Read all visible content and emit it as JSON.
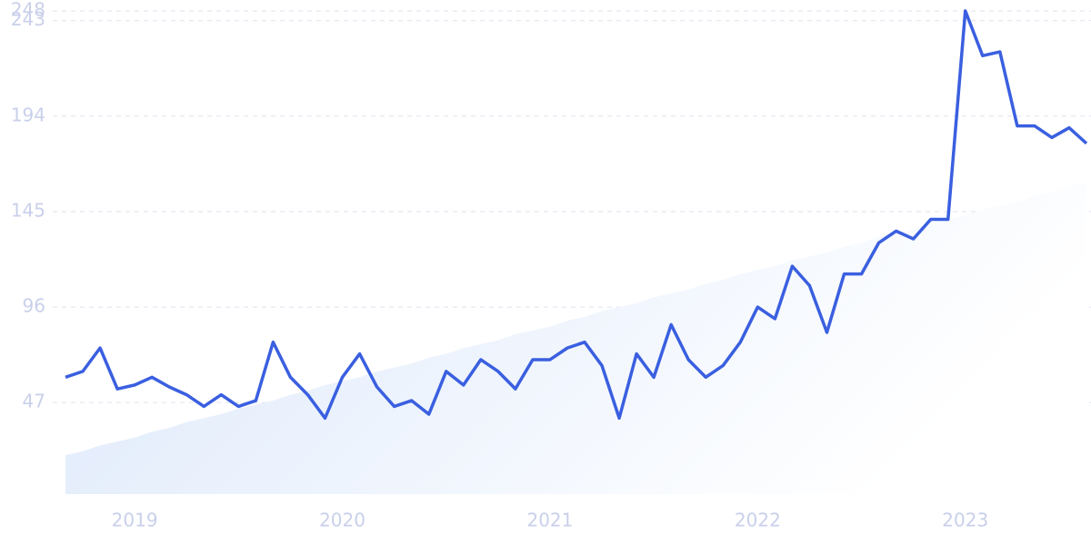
{
  "chart_data": {
    "type": "line",
    "categories": [
      null,
      null,
      null,
      null,
      "2019",
      null,
      null,
      null,
      null,
      null,
      null,
      null,
      null,
      null,
      null,
      null,
      "2020",
      null,
      null,
      null,
      null,
      null,
      null,
      null,
      null,
      null,
      null,
      null,
      "2021",
      null,
      null,
      null,
      null,
      null,
      null,
      null,
      null,
      null,
      null,
      null,
      "2022",
      null,
      null,
      null,
      null,
      null,
      null,
      null,
      null,
      null,
      null,
      null,
      "2023",
      null,
      null,
      null,
      null,
      null,
      null,
      null
    ],
    "series": [
      {
        "color": "#3a5fe0",
        "values": [
          60,
          63,
          75,
          54,
          56,
          60,
          55,
          51,
          45,
          51,
          45,
          48,
          78,
          60,
          51,
          39,
          60,
          72,
          55,
          45,
          48,
          41,
          63,
          56,
          69,
          63,
          54,
          69,
          69,
          75,
          78,
          66,
          39,
          72,
          60,
          87,
          69,
          60,
          66,
          78,
          96,
          90,
          117,
          107,
          83,
          113,
          113,
          129,
          135,
          131,
          141,
          141,
          248,
          225,
          227,
          189,
          189,
          183,
          188,
          180
        ]
      },
      {
        "type": "area",
        "color": "#dce8fb",
        "values": [
          20,
          22,
          25,
          27,
          29,
          32,
          34,
          37,
          39,
          41,
          44,
          46,
          48,
          51,
          53,
          56,
          58,
          60,
          63,
          65,
          67,
          70,
          72,
          75,
          77,
          79,
          82,
          84,
          86,
          89,
          91,
          94,
          96,
          98,
          101,
          103,
          105,
          108,
          110,
          113,
          115,
          117,
          120,
          122,
          124,
          127,
          129,
          132,
          134,
          136,
          139,
          141,
          143,
          146,
          148,
          150,
          153,
          155,
          158,
          160
        ]
      }
    ],
    "ylim": [
      0,
      248
    ],
    "yticks": [
      47,
      96,
      145,
      194,
      243,
      248
    ],
    "grid": true
  }
}
